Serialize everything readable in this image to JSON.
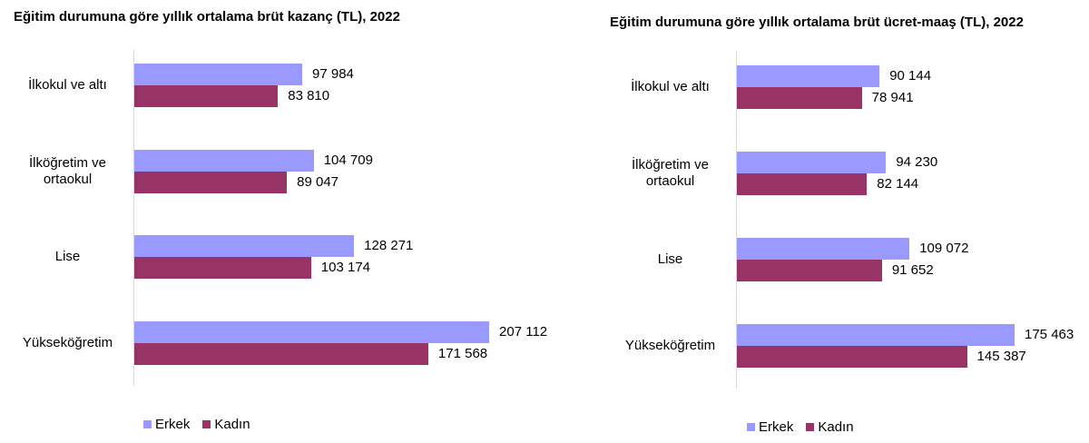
{
  "colors": {
    "erkek": "#9999FF",
    "kadin": "#993366"
  },
  "legend": {
    "erkek": "Erkek",
    "kadin": "Kadın"
  },
  "chart_data": [
    {
      "type": "bar",
      "orientation": "horizontal",
      "title": "Eğitim durumuna göre yıllık ortalama brüt kazanç (TL), 2022",
      "categories": [
        "İlkokul ve altı",
        "İlkoğretim ve ortaokul",
        "Lise",
        "Yükseköğretim"
      ],
      "series": [
        {
          "name": "Erkek",
          "values": [
            97984,
            104709,
            128271,
            207112
          ],
          "labels": [
            "97 984",
            "104 709",
            "128 271",
            "207 112"
          ]
        },
        {
          "name": "Kadın",
          "values": [
            83810,
            89047,
            103174,
            171568
          ],
          "labels": [
            "83 810",
            "89 047",
            "103 174",
            "171 568"
          ]
        }
      ],
      "xlabel": "",
      "ylabel": "",
      "grid": false,
      "legend_position": "bottom"
    },
    {
      "type": "bar",
      "orientation": "horizontal",
      "title": "Eğitim durumuna göre yıllık ortalama brüt ücret-maaş (TL), 2022",
      "categories": [
        "İlkokul ve altı",
        "İlköğretim ve ortaokul",
        "Lise",
        "Yükseköğretim"
      ],
      "series": [
        {
          "name": "Erkek",
          "values": [
            90144,
            94230,
            109072,
            175463
          ],
          "labels": [
            "90 144",
            "94 230",
            "109 072",
            "175 463"
          ]
        },
        {
          "name": "Kadın",
          "values": [
            78941,
            82144,
            91652,
            145387
          ],
          "labels": [
            "78 941",
            "82 144",
            "91 652",
            "145 387"
          ]
        }
      ],
      "xlabel": "",
      "ylabel": "",
      "grid": false,
      "legend_position": "bottom"
    }
  ],
  "left": {
    "title": "Eğitim durumuna göre yıllık ortalama brüt kazanç (TL), 2022",
    "cat_lines": [
      [
        "İlkokul ve altı"
      ],
      [
        "İlköğretim ve",
        "ortaokul"
      ],
      [
        "Lise"
      ],
      [
        "Yükseköğretim"
      ]
    ]
  },
  "right": {
    "title": "Eğitim durumuna göre yıllık ortalama brüt ücret-maaş (TL), 2022",
    "cat_lines": [
      [
        "İlkokul ve altı"
      ],
      [
        "İlköğretim ve",
        "ortaokul"
      ],
      [
        "Lise"
      ],
      [
        "Yükseköğretim"
      ]
    ]
  }
}
